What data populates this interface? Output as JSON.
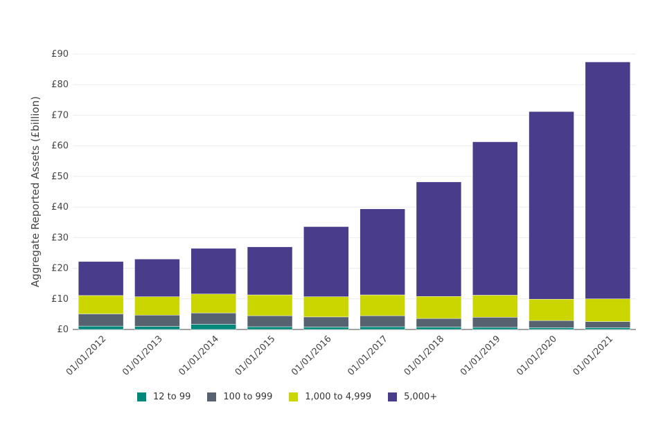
{
  "chart_data": {
    "type": "bar",
    "stacked": true,
    "ylabel": "Aggregate Reported Assets (£billion)",
    "xlabel": "",
    "ylim": [
      0,
      90
    ],
    "yticks": [
      "£0",
      "£10",
      "£20",
      "£30",
      "£40",
      "£50",
      "£60",
      "£70",
      "£80",
      "£90"
    ],
    "grid": true,
    "legend_position": "bottom",
    "categories": [
      "01/01/2012",
      "01/01/2013",
      "01/01/2014",
      "01/01/2015",
      "01/01/2016",
      "01/01/2017",
      "01/01/2018",
      "01/01/2019",
      "01/01/2020",
      "01/01/2021"
    ],
    "series": [
      {
        "name": "12 to 99",
        "color": "#00897b",
        "values": [
          1.1,
          1.0,
          1.7,
          0.9,
          0.8,
          0.9,
          0.8,
          0.7,
          0.6,
          0.6
        ]
      },
      {
        "name": "100 to 999",
        "color": "#566270",
        "values": [
          4.0,
          3.7,
          3.7,
          3.6,
          3.3,
          3.6,
          2.8,
          3.3,
          2.3,
          2.0
        ]
      },
      {
        "name": "1,000 to 4,999",
        "color": "#cbd500",
        "values": [
          6.0,
          6.0,
          6.2,
          6.8,
          6.6,
          6.8,
          7.2,
          7.2,
          7.0,
          7.4
        ]
      },
      {
        "name": "5,000+",
        "color": "#483c8b",
        "values": [
          11.1,
          12.3,
          14.9,
          15.7,
          22.9,
          28.1,
          37.4,
          50.1,
          61.3,
          77.4
        ]
      }
    ]
  }
}
